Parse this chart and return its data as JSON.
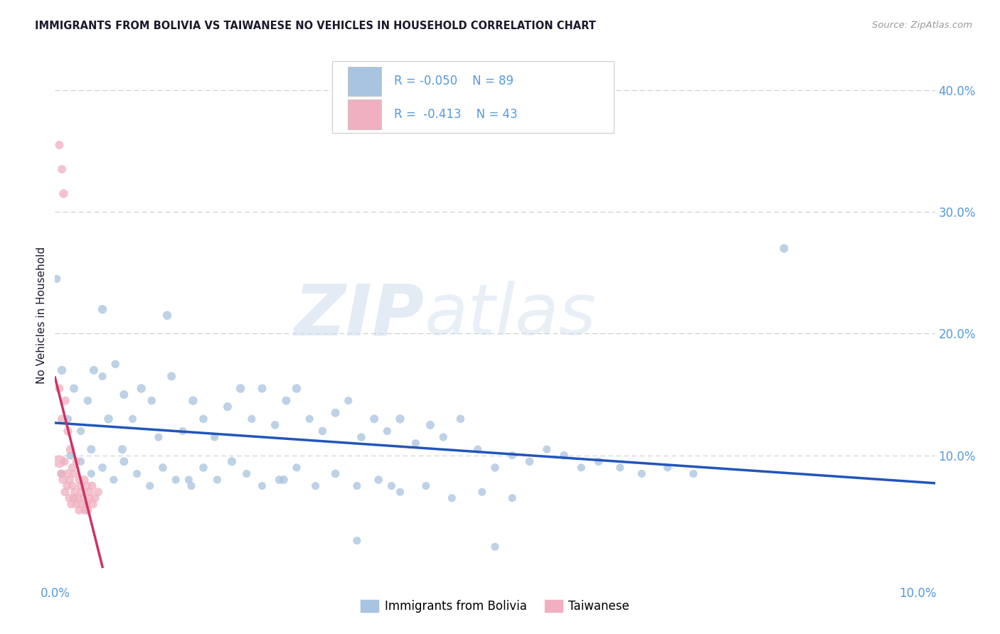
{
  "title": "IMMIGRANTS FROM BOLIVIA VS TAIWANESE NO VEHICLES IN HOUSEHOLD CORRELATION CHART",
  "source": "Source: ZipAtlas.com",
  "ylabel": "No Vehicles in Household",
  "xlim": [
    0.0,
    0.102
  ],
  "ylim": [
    -0.005,
    0.435
  ],
  "x_ticks": [
    0.0,
    0.02,
    0.04,
    0.06,
    0.08,
    0.1
  ],
  "x_tick_labels": [
    "0.0%",
    "",
    "",
    "",
    "",
    "10.0%"
  ],
  "y_ticks_right": [
    0.1,
    0.2,
    0.3,
    0.4
  ],
  "y_tick_labels_right": [
    "10.0%",
    "20.0%",
    "30.0%",
    "40.0%"
  ],
  "legend_r1": "-0.050",
  "legend_n1": "89",
  "legend_r2": "-0.413",
  "legend_n2": "43",
  "legend_label1": "Immigrants from Bolivia",
  "legend_label2": "Taiwanese",
  "color_blue": "#a8c4e0",
  "color_pink": "#f0b0c0",
  "line_blue": "#2255bb",
  "line_pink": "#cc3366",
  "tick_color": "#5599dd",
  "text_color": "#1a1a2e",
  "source_color": "#999999",
  "background_color": "#ffffff",
  "watermark_zip": "ZIP",
  "watermark_atlas": "atlas",
  "grid_color": "#cccccc",
  "legend_border_color": "#cccccc",
  "bolivia_x": [
    0.0008,
    0.0015,
    0.0022,
    0.003,
    0.0038,
    0.0045,
    0.0055,
    0.0062,
    0.007,
    0.008,
    0.009,
    0.01,
    0.0112,
    0.012,
    0.0135,
    0.0148,
    0.016,
    0.0172,
    0.0185,
    0.02,
    0.0215,
    0.0228,
    0.024,
    0.0255,
    0.0268,
    0.028,
    0.0295,
    0.031,
    0.0325,
    0.034,
    0.0355,
    0.037,
    0.0385,
    0.04,
    0.0418,
    0.0435,
    0.045,
    0.047,
    0.049,
    0.051,
    0.053,
    0.055,
    0.057,
    0.059,
    0.061,
    0.063,
    0.0655,
    0.068,
    0.071,
    0.074,
    0.0008,
    0.0018,
    0.003,
    0.0042,
    0.0055,
    0.0068,
    0.008,
    0.0095,
    0.011,
    0.0125,
    0.014,
    0.0158,
    0.0172,
    0.0188,
    0.0205,
    0.0222,
    0.024,
    0.026,
    0.028,
    0.0302,
    0.0325,
    0.035,
    0.0375,
    0.04,
    0.043,
    0.046,
    0.0495,
    0.053,
    0.0002,
    0.0845,
    0.0042,
    0.0078,
    0.0155,
    0.0265,
    0.039,
    0.0055,
    0.013,
    0.035,
    0.051
  ],
  "bolivia_y": [
    0.17,
    0.13,
    0.155,
    0.12,
    0.145,
    0.17,
    0.165,
    0.13,
    0.175,
    0.15,
    0.13,
    0.155,
    0.145,
    0.115,
    0.165,
    0.12,
    0.145,
    0.13,
    0.115,
    0.14,
    0.155,
    0.13,
    0.155,
    0.125,
    0.145,
    0.155,
    0.13,
    0.12,
    0.135,
    0.145,
    0.115,
    0.13,
    0.12,
    0.13,
    0.11,
    0.125,
    0.115,
    0.13,
    0.105,
    0.09,
    0.1,
    0.095,
    0.105,
    0.1,
    0.09,
    0.095,
    0.09,
    0.085,
    0.09,
    0.085,
    0.085,
    0.1,
    0.095,
    0.085,
    0.09,
    0.08,
    0.095,
    0.085,
    0.075,
    0.09,
    0.08,
    0.075,
    0.09,
    0.08,
    0.095,
    0.085,
    0.075,
    0.08,
    0.09,
    0.075,
    0.085,
    0.075,
    0.08,
    0.07,
    0.075,
    0.065,
    0.07,
    0.065,
    0.245,
    0.27,
    0.105,
    0.105,
    0.08,
    0.08,
    0.075,
    0.22,
    0.215,
    0.03,
    0.025
  ],
  "bolivia_s": [
    70,
    55,
    65,
    55,
    60,
    65,
    55,
    70,
    60,
    65,
    55,
    70,
    60,
    55,
    65,
    55,
    70,
    60,
    55,
    65,
    70,
    55,
    65,
    60,
    65,
    70,
    55,
    60,
    65,
    55,
    60,
    65,
    55,
    70,
    55,
    65,
    55,
    60,
    55,
    60,
    55,
    60,
    55,
    60,
    55,
    60,
    55,
    55,
    55,
    55,
    55,
    60,
    55,
    55,
    60,
    55,
    65,
    55,
    55,
    60,
    55,
    55,
    60,
    55,
    65,
    55,
    55,
    60,
    55,
    55,
    60,
    55,
    60,
    55,
    55,
    55,
    55,
    55,
    55,
    65,
    65,
    65,
    55,
    65,
    55,
    70,
    70,
    55,
    55
  ],
  "taiwanese_x": [
    0.0005,
    0.0008,
    0.001,
    0.0012,
    0.0015,
    0.0018,
    0.002,
    0.0022,
    0.0025,
    0.0028,
    0.0031,
    0.0034,
    0.0037,
    0.004,
    0.0043,
    0.00465,
    0.005,
    0.0005,
    0.0008,
    0.0011,
    0.0014,
    0.0017,
    0.002,
    0.0023,
    0.0026,
    0.00295,
    0.0033,
    0.00365,
    0.004,
    0.0044,
    0.0005,
    0.0007,
    0.0009,
    0.00115,
    0.0014,
    0.00165,
    0.0019,
    0.0022,
    0.0025,
    0.0028,
    0.0031,
    0.00345,
    0.0038
  ],
  "taiwanese_y": [
    0.355,
    0.335,
    0.315,
    0.145,
    0.12,
    0.105,
    0.09,
    0.085,
    0.095,
    0.08,
    0.07,
    0.08,
    0.075,
    0.07,
    0.075,
    0.065,
    0.07,
    0.155,
    0.13,
    0.095,
    0.085,
    0.08,
    0.075,
    0.07,
    0.065,
    0.075,
    0.065,
    0.06,
    0.065,
    0.06,
    0.095,
    0.085,
    0.08,
    0.07,
    0.075,
    0.065,
    0.06,
    0.065,
    0.06,
    0.055,
    0.06,
    0.055,
    0.055
  ],
  "taiwanese_s": [
    65,
    65,
    70,
    65,
    70,
    75,
    65,
    65,
    65,
    65,
    65,
    65,
    65,
    65,
    65,
    65,
    65,
    65,
    65,
    65,
    65,
    65,
    65,
    65,
    65,
    65,
    65,
    65,
    65,
    65,
    150,
    65,
    65,
    65,
    65,
    65,
    65,
    65,
    65,
    65,
    65,
    65,
    65
  ]
}
